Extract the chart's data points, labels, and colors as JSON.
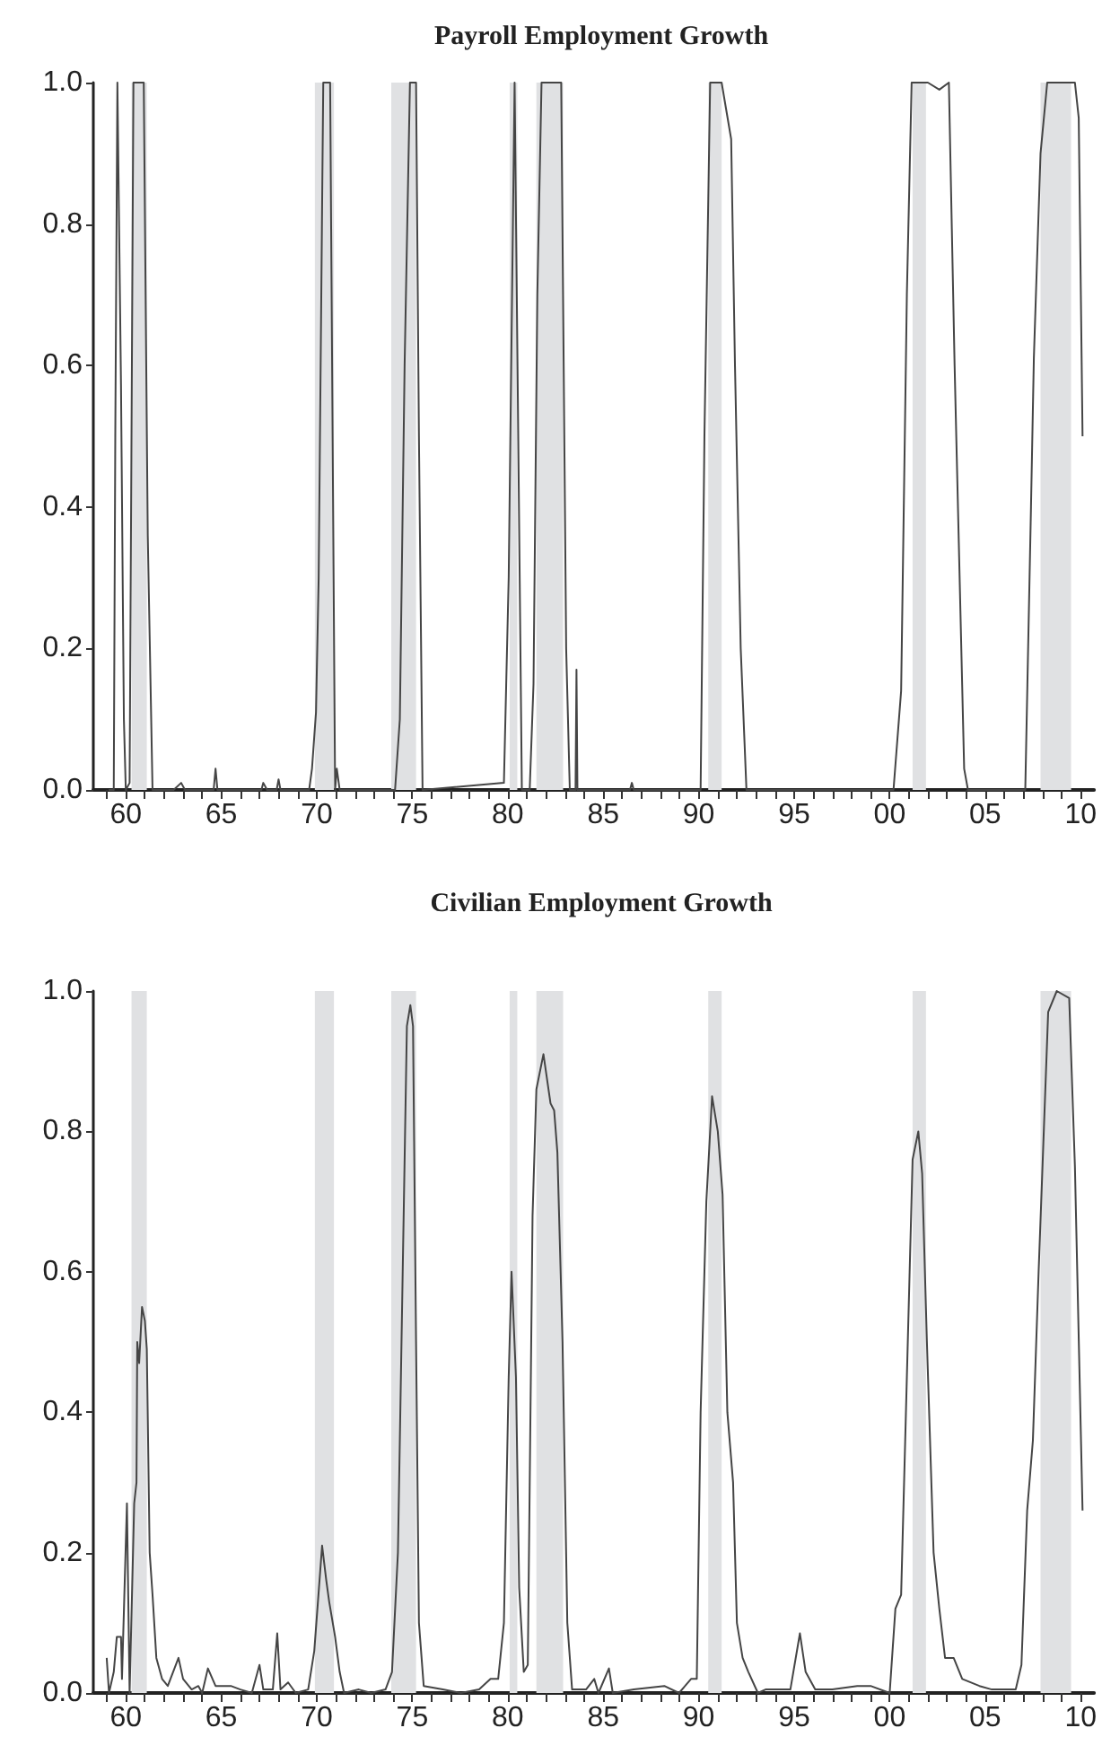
{
  "chart_data": [
    {
      "type": "line",
      "title": "Payroll Employment Growth",
      "color": "#454545",
      "x": [
        1959.1,
        1959.37,
        1959.45,
        1959.56,
        1959.75,
        1959.9,
        1960.0,
        1960.2,
        1960.4,
        1960.94,
        1961.15,
        1961.4,
        1962.5,
        1962.9,
        1963.1,
        1964.6,
        1964.7,
        1964.8,
        1967.1,
        1967.2,
        1967.4,
        1967.9,
        1968.0,
        1968.1,
        1969.6,
        1969.75,
        1969.96,
        1970.1,
        1970.34,
        1970.7,
        1970.96,
        1971.05,
        1971.2,
        1974.1,
        1974.35,
        1974.6,
        1974.88,
        1975.2,
        1975.35,
        1975.54,
        1979.8,
        1980.05,
        1980.36,
        1980.74,
        1981.15,
        1981.35,
        1981.55,
        1981.77,
        1982.8,
        1983.06,
        1983.25,
        1983.55,
        1983.6,
        1983.65,
        1986.4,
        1986.5,
        1986.6,
        1990.1,
        1990.3,
        1990.6,
        1991.2,
        1991.7,
        1991.9,
        1992.2,
        1992.5,
        2000.2,
        2000.6,
        2000.9,
        2001.15,
        2002.0,
        2002.6,
        2003.1,
        2003.4,
        2003.9,
        2004.1,
        2007.1,
        2007.4,
        2007.55,
        2007.9,
        2008.25,
        2009.7,
        2009.9,
        2010.1
      ],
      "values": [
        0,
        0,
        0.5,
        1.0,
        0.57,
        0.1,
        0,
        0.01,
        1.0,
        1.0,
        0.36,
        0,
        0,
        0.01,
        0,
        0,
        0.03,
        0,
        0,
        0.01,
        0,
        0,
        0.015,
        0,
        0,
        0.03,
        0.11,
        0.3,
        1.0,
        1.0,
        0,
        0.03,
        0,
        0,
        0.1,
        0.6,
        1.0,
        1.0,
        0.5,
        0,
        0.01,
        0.3,
        1.0,
        0,
        0,
        0.15,
        0.7,
        1.0,
        1.0,
        0.2,
        0,
        0,
        0.17,
        0,
        0,
        0.01,
        0,
        0,
        0.5,
        1.0,
        1.0,
        0.92,
        0.6,
        0.2,
        0,
        0,
        0.14,
        0.7,
        1.0,
        1.0,
        0.99,
        1.0,
        0.6,
        0.03,
        0,
        0,
        0.4,
        0.61,
        0.9,
        1.0,
        1.0,
        0.95,
        0.5
      ],
      "xlim": [
        1958.3,
        2010.7
      ],
      "xticks": [
        {
          "value": 1959,
          "label": null
        },
        {
          "value": 1960,
          "label": "60"
        },
        {
          "value": 1961,
          "label": null
        },
        {
          "value": 1962,
          "label": null
        },
        {
          "value": 1963,
          "label": null
        },
        {
          "value": 1964,
          "label": null
        },
        {
          "value": 1965,
          "label": "65"
        },
        {
          "value": 1966,
          "label": null
        },
        {
          "value": 1967,
          "label": null
        },
        {
          "value": 1968,
          "label": null
        },
        {
          "value": 1969,
          "label": null
        },
        {
          "value": 1970,
          "label": "70"
        },
        {
          "value": 1971,
          "label": null
        },
        {
          "value": 1972,
          "label": null
        },
        {
          "value": 1973,
          "label": null
        },
        {
          "value": 1974,
          "label": null
        },
        {
          "value": 1975,
          "label": "75"
        },
        {
          "value": 1976,
          "label": null
        },
        {
          "value": 1977,
          "label": null
        },
        {
          "value": 1978,
          "label": null
        },
        {
          "value": 1979,
          "label": null
        },
        {
          "value": 1980,
          "label": "80"
        },
        {
          "value": 1981,
          "label": null
        },
        {
          "value": 1982,
          "label": null
        },
        {
          "value": 1983,
          "label": null
        },
        {
          "value": 1984,
          "label": null
        },
        {
          "value": 1985,
          "label": "85"
        },
        {
          "value": 1986,
          "label": null
        },
        {
          "value": 1987,
          "label": null
        },
        {
          "value": 1988,
          "label": null
        },
        {
          "value": 1989,
          "label": null
        },
        {
          "value": 1990,
          "label": "90"
        },
        {
          "value": 1991,
          "label": null
        },
        {
          "value": 1992,
          "label": null
        },
        {
          "value": 1993,
          "label": null
        },
        {
          "value": 1994,
          "label": null
        },
        {
          "value": 1995,
          "label": "95"
        },
        {
          "value": 1996,
          "label": null
        },
        {
          "value": 1997,
          "label": null
        },
        {
          "value": 1998,
          "label": null
        },
        {
          "value": 1999,
          "label": null
        },
        {
          "value": 2000,
          "label": "00"
        },
        {
          "value": 2001,
          "label": null
        },
        {
          "value": 2002,
          "label": null
        },
        {
          "value": 2003,
          "label": null
        },
        {
          "value": 2004,
          "label": null
        },
        {
          "value": 2005,
          "label": "05"
        },
        {
          "value": 2006,
          "label": null
        },
        {
          "value": 2007,
          "label": null
        },
        {
          "value": 2008,
          "label": null
        },
        {
          "value": 2009,
          "label": null
        },
        {
          "value": 2010,
          "label": "10"
        }
      ],
      "ylim": [
        0,
        1
      ],
      "yticks": [
        {
          "value": 0,
          "label": "0.0"
        },
        {
          "value": 0.2,
          "label": "0.2"
        },
        {
          "value": 0.4,
          "label": "0.4"
        },
        {
          "value": 0.6,
          "label": "0.6"
        },
        {
          "value": 0.8,
          "label": "0.8"
        },
        {
          "value": 1,
          "label": "1.0"
        }
      ],
      "bands": [
        {
          "axis": "x",
          "from": 1960.3,
          "to": 1961.1,
          "color": "#e0e1e3"
        },
        {
          "axis": "x",
          "from": 1969.9,
          "to": 1970.9,
          "color": "#e0e1e3"
        },
        {
          "axis": "x",
          "from": 1973.9,
          "to": 1975.2,
          "color": "#e0e1e3"
        },
        {
          "axis": "x",
          "from": 1980.1,
          "to": 1980.5,
          "color": "#e0e1e3"
        },
        {
          "axis": "x",
          "from": 1981.5,
          "to": 1982.9,
          "color": "#e0e1e3"
        },
        {
          "axis": "x",
          "from": 1990.5,
          "to": 1991.2,
          "color": "#e0e1e3"
        },
        {
          "axis": "x",
          "from": 2001.2,
          "to": 2001.9,
          "color": "#e0e1e3"
        },
        {
          "axis": "x",
          "from": 2007.9,
          "to": 2009.5,
          "color": "#e0e1e3"
        }
      ]
    },
    {
      "type": "line",
      "title": "Civilian Employment Growth",
      "color": "#454545",
      "x": [
        1959.0,
        1959.12,
        1959.37,
        1959.53,
        1959.75,
        1959.8,
        1960.06,
        1960.2,
        1960.44,
        1960.56,
        1960.6,
        1960.7,
        1960.85,
        1961.0,
        1961.1,
        1961.25,
        1961.4,
        1961.6,
        1961.9,
        1962.2,
        1962.76,
        1963.0,
        1963.45,
        1963.8,
        1964.0,
        1964.3,
        1964.7,
        1965.5,
        1966.0,
        1966.6,
        1967.0,
        1967.2,
        1967.7,
        1967.93,
        1968.1,
        1968.5,
        1968.9,
        1969.55,
        1969.87,
        1970.28,
        1970.5,
        1970.65,
        1970.96,
        1971.2,
        1971.43,
        1972.2,
        1972.85,
        1973.6,
        1973.94,
        1974.25,
        1974.5,
        1974.72,
        1974.9,
        1975.04,
        1975.2,
        1975.35,
        1975.6,
        1976.6,
        1977.55,
        1978.5,
        1979.1,
        1979.5,
        1979.8,
        1980.05,
        1980.2,
        1980.43,
        1980.6,
        1980.84,
        1981.05,
        1981.3,
        1981.5,
        1981.87,
        1982.24,
        1982.43,
        1982.6,
        1982.87,
        1983.12,
        1983.37,
        1984.1,
        1984.53,
        1984.75,
        1985.3,
        1985.5,
        1986.6,
        1988.2,
        1988.97,
        1989.6,
        1989.9,
        1990.1,
        1990.4,
        1990.7,
        1991.0,
        1991.25,
        1991.5,
        1991.8,
        1992.0,
        1992.3,
        1992.6,
        1993.1,
        1993.5,
        1994.8,
        1995.3,
        1995.6,
        1996.1,
        1997.0,
        1998.3,
        1999.0,
        2000.0,
        2000.3,
        2000.6,
        2000.9,
        2001.2,
        2001.5,
        2001.7,
        2001.95,
        2002.3,
        2002.6,
        2002.9,
        2003.35,
        2003.8,
        2004.7,
        2005.35,
        2005.96,
        2006.6,
        2006.9,
        2007.2,
        2007.5,
        2007.8,
        2008.3,
        2008.75,
        2009.4,
        2009.7,
        2010.1
      ],
      "values": [
        0.05,
        0,
        0.03,
        0.08,
        0.08,
        0.02,
        0.27,
        0,
        0.27,
        0.3,
        0.5,
        0.47,
        0.55,
        0.53,
        0.49,
        0.2,
        0.14,
        0.05,
        0.02,
        0.01,
        0.05,
        0.02,
        0.005,
        0.01,
        0,
        0.035,
        0.01,
        0.01,
        0.005,
        0,
        0.04,
        0.005,
        0.005,
        0.085,
        0.005,
        0.015,
        0,
        0.005,
        0.06,
        0.21,
        0.16,
        0.13,
        0.08,
        0.03,
        0,
        0.005,
        0,
        0.005,
        0.03,
        0.2,
        0.6,
        0.95,
        0.98,
        0.95,
        0.5,
        0.1,
        0.01,
        0.005,
        0,
        0.005,
        0.02,
        0.02,
        0.1,
        0.45,
        0.6,
        0.45,
        0.15,
        0.03,
        0.04,
        0.68,
        0.86,
        0.91,
        0.84,
        0.83,
        0.77,
        0.5,
        0.1,
        0.005,
        0.005,
        0.02,
        0,
        0.035,
        0,
        0.005,
        0.01,
        0,
        0.02,
        0.02,
        0.4,
        0.7,
        0.85,
        0.8,
        0.71,
        0.4,
        0.3,
        0.1,
        0.05,
        0.03,
        0,
        0.005,
        0.005,
        0.085,
        0.03,
        0.005,
        0.005,
        0.01,
        0.01,
        0,
        0.12,
        0.14,
        0.45,
        0.76,
        0.8,
        0.74,
        0.5,
        0.2,
        0.12,
        0.05,
        0.05,
        0.02,
        0.01,
        0.005,
        0.005,
        0.005,
        0.04,
        0.26,
        0.36,
        0.6,
        0.97,
        1.0,
        0.99,
        0.75,
        0.26
      ],
      "xlim": [
        1958.3,
        2010.7
      ],
      "xticks": [
        {
          "value": 1959,
          "label": null
        },
        {
          "value": 1960,
          "label": "60"
        },
        {
          "value": 1961,
          "label": null
        },
        {
          "value": 1962,
          "label": null
        },
        {
          "value": 1963,
          "label": null
        },
        {
          "value": 1964,
          "label": null
        },
        {
          "value": 1965,
          "label": "65"
        },
        {
          "value": 1966,
          "label": null
        },
        {
          "value": 1967,
          "label": null
        },
        {
          "value": 1968,
          "label": null
        },
        {
          "value": 1969,
          "label": null
        },
        {
          "value": 1970,
          "label": "70"
        },
        {
          "value": 1971,
          "label": null
        },
        {
          "value": 1972,
          "label": null
        },
        {
          "value": 1973,
          "label": null
        },
        {
          "value": 1974,
          "label": null
        },
        {
          "value": 1975,
          "label": "75"
        },
        {
          "value": 1976,
          "label": null
        },
        {
          "value": 1977,
          "label": null
        },
        {
          "value": 1978,
          "label": null
        },
        {
          "value": 1979,
          "label": null
        },
        {
          "value": 1980,
          "label": "80"
        },
        {
          "value": 1981,
          "label": null
        },
        {
          "value": 1982,
          "label": null
        },
        {
          "value": 1983,
          "label": null
        },
        {
          "value": 1984,
          "label": null
        },
        {
          "value": 1985,
          "label": "85"
        },
        {
          "value": 1986,
          "label": null
        },
        {
          "value": 1987,
          "label": null
        },
        {
          "value": 1988,
          "label": null
        },
        {
          "value": 1989,
          "label": null
        },
        {
          "value": 1990,
          "label": "90"
        },
        {
          "value": 1991,
          "label": null
        },
        {
          "value": 1992,
          "label": null
        },
        {
          "value": 1993,
          "label": null
        },
        {
          "value": 1994,
          "label": null
        },
        {
          "value": 1995,
          "label": "95"
        },
        {
          "value": 1996,
          "label": null
        },
        {
          "value": 1997,
          "label": null
        },
        {
          "value": 1998,
          "label": null
        },
        {
          "value": 1999,
          "label": null
        },
        {
          "value": 2000,
          "label": "00"
        },
        {
          "value": 2001,
          "label": null
        },
        {
          "value": 2002,
          "label": null
        },
        {
          "value": 2003,
          "label": null
        },
        {
          "value": 2004,
          "label": null
        },
        {
          "value": 2005,
          "label": "05"
        },
        {
          "value": 2006,
          "label": null
        },
        {
          "value": 2007,
          "label": null
        },
        {
          "value": 2008,
          "label": null
        },
        {
          "value": 2009,
          "label": null
        },
        {
          "value": 2010,
          "label": "10"
        }
      ],
      "ylim": [
        0,
        1
      ],
      "yticks": [
        {
          "value": 0,
          "label": "0.0"
        },
        {
          "value": 0.2,
          "label": "0.2"
        },
        {
          "value": 0.4,
          "label": "0.4"
        },
        {
          "value": 0.6,
          "label": "0.6"
        },
        {
          "value": 0.8,
          "label": "0.8"
        },
        {
          "value": 1,
          "label": "1.0"
        }
      ],
      "bands": [
        {
          "axis": "x",
          "from": 1960.3,
          "to": 1961.1,
          "color": "#e0e1e3"
        },
        {
          "axis": "x",
          "from": 1969.9,
          "to": 1970.9,
          "color": "#e0e1e3"
        },
        {
          "axis": "x",
          "from": 1973.9,
          "to": 1975.2,
          "color": "#e0e1e3"
        },
        {
          "axis": "x",
          "from": 1980.1,
          "to": 1980.5,
          "color": "#e0e1e3"
        },
        {
          "axis": "x",
          "from": 1981.5,
          "to": 1982.9,
          "color": "#e0e1e3"
        },
        {
          "axis": "x",
          "from": 1990.5,
          "to": 1991.2,
          "color": "#e0e1e3"
        },
        {
          "axis": "x",
          "from": 2001.2,
          "to": 2001.9,
          "color": "#e0e1e3"
        },
        {
          "axis": "x",
          "from": 2007.9,
          "to": 2009.5,
          "color": "#e0e1e3"
        }
      ]
    }
  ]
}
